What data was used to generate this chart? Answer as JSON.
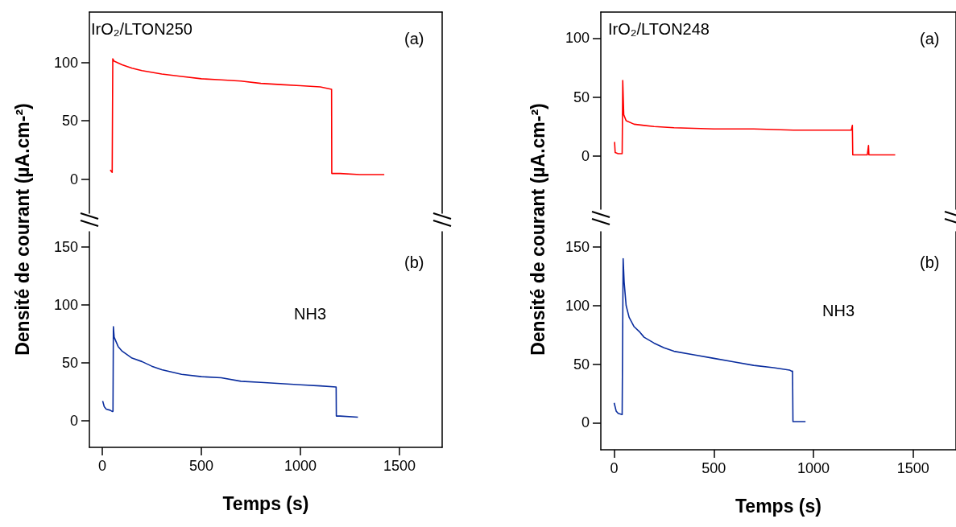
{
  "chart_data": [
    {
      "type": "line",
      "annotations": [
        "IrO₂/LTON250",
        "(a)"
      ],
      "xlim": [
        -65,
        1715
      ],
      "ylim": [
        -29,
        143
      ],
      "yticks": [
        0,
        50,
        100
      ],
      "tick_labels": "y",
      "marker": "none",
      "line_style": "solid",
      "series": [
        {
          "color": "#ff0000",
          "x": [
            40,
            50,
            52,
            53,
            60,
            100,
            150,
            200,
            300,
            400,
            500,
            600,
            700,
            800,
            900,
            1000,
            1100,
            1157,
            1158,
            1200,
            1300,
            1423
          ],
          "values": [
            8,
            6,
            6,
            103,
            101,
            98,
            95,
            93,
            90,
            88,
            86,
            85,
            84,
            82,
            81,
            80,
            79,
            77,
            5,
            5,
            4,
            4
          ]
        }
      ]
    },
    {
      "type": "line",
      "annotations": [
        "(b)",
        "NH3"
      ],
      "xlabel": "Temps (s)",
      "ylabel": "Densité de courant (µA.cm-²)",
      "xlim": [
        -65,
        1715
      ],
      "ylim": [
        -23,
        163
      ],
      "yticks": [
        0,
        50,
        100,
        150
      ],
      "xticks": [
        0,
        500,
        1000,
        1500
      ],
      "marker": "none",
      "line_style": "solid",
      "series": [
        {
          "color": "#0a2d9e",
          "x": [
            2,
            10,
            20,
            40,
            50,
            54,
            56,
            60,
            80,
            100,
            150,
            200,
            250,
            300,
            400,
            500,
            600,
            700,
            800,
            900,
            1000,
            1100,
            1180,
            1181,
            1200,
            1290
          ],
          "values": [
            17,
            12,
            10,
            9,
            8,
            8,
            81,
            72,
            64,
            60,
            54,
            51,
            47,
            44,
            40,
            38,
            37,
            34,
            33,
            32,
            31,
            30,
            29,
            4,
            4,
            3
          ]
        }
      ]
    },
    {
      "type": "line",
      "annotations": [
        "IrO₂/LTON248",
        "(a)"
      ],
      "xlim": [
        -67,
        1715
      ],
      "ylim": [
        -45,
        122
      ],
      "yticks": [
        0,
        50,
        100
      ],
      "tick_labels": "y",
      "marker": "none",
      "line_style": "solid",
      "series": [
        {
          "color": "#ff0000",
          "x": [
            2,
            5,
            20,
            40,
            41,
            43,
            48,
            60,
            100,
            150,
            200,
            300,
            500,
            700,
            900,
            1100,
            1180,
            1190,
            1195,
            1197,
            1270,
            1276,
            1278,
            1280,
            1350,
            1410
          ],
          "values": [
            12,
            3,
            2,
            2,
            20,
            64,
            35,
            30,
            27,
            26,
            25,
            24,
            23,
            23,
            22,
            22,
            22,
            22,
            26,
            1,
            1,
            9,
            1,
            1,
            1,
            1
          ]
        }
      ]
    },
    {
      "type": "line",
      "annotations": [
        "(b)",
        "NH3"
      ],
      "xlabel": "Temps (s)",
      "ylabel": "Densité de courant (µA.cm-²)",
      "xlim": [
        -67,
        1715
      ],
      "ylim": [
        -23,
        163
      ],
      "yticks": [
        0,
        50,
        100,
        150
      ],
      "xticks": [
        0,
        500,
        1000,
        1500
      ],
      "marker": "none",
      "line_style": "solid",
      "series": [
        {
          "color": "#0a2d9e",
          "x": [
            0,
            10,
            20,
            40,
            42,
            45,
            50,
            60,
            75,
            100,
            125,
            150,
            200,
            250,
            300,
            400,
            500,
            600,
            700,
            800,
            880,
            890,
            895,
            897,
            960
          ],
          "values": [
            17,
            10,
            8,
            7,
            7,
            140,
            120,
            100,
            90,
            82,
            78,
            73,
            68,
            64,
            61,
            58,
            55,
            52,
            49,
            47,
            45,
            44,
            44,
            1,
            1
          ]
        }
      ]
    }
  ]
}
